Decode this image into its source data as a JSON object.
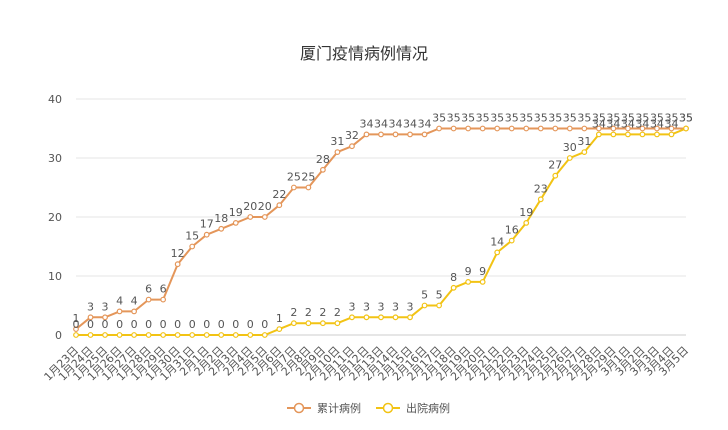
{
  "chart_data": {
    "type": "line",
    "title": "厦门疫情病例情况",
    "xlabel": "",
    "ylabel": "",
    "ylim": [
      0,
      40
    ],
    "yticks": [
      0,
      10,
      20,
      30,
      40
    ],
    "grid": true,
    "legend_position": "bottom",
    "categories": [
      "1月23日",
      "1月24日",
      "1月25日",
      "1月26日",
      "1月27日",
      "1月28日",
      "1月29日",
      "1月30日",
      "1月31日",
      "2月1日",
      "2月2日",
      "2月3日",
      "2月4日",
      "2月5日",
      "2月6日",
      "2月7日",
      "2月8日",
      "2月9日",
      "2月10日",
      "2月11日",
      "2月12日",
      "2月13日",
      "2月14日",
      "2月15日",
      "2月16日",
      "2月17日",
      "2月18日",
      "2月19日",
      "2月20日",
      "2月21日",
      "2月22日",
      "2月23日",
      "2月24日",
      "2月25日",
      "2月26日",
      "2月27日",
      "2月28日",
      "2月29日",
      "3月1日",
      "3月2日",
      "3月3日",
      "3月4日",
      "3月5日"
    ],
    "series": [
      {
        "name": "累计病例",
        "color": "#e4965a",
        "values": [
          1,
          3,
          3,
          4,
          4,
          6,
          6,
          12,
          15,
          17,
          18,
          19,
          20,
          20,
          22,
          25,
          25,
          28,
          31,
          32,
          34,
          34,
          34,
          34,
          34,
          35,
          35,
          35,
          35,
          35,
          35,
          35,
          35,
          35,
          35,
          35,
          35,
          35,
          35,
          35,
          35,
          35,
          35
        ]
      },
      {
        "name": "出院病例",
        "color": "#f2c314",
        "values": [
          0,
          0,
          0,
          0,
          0,
          0,
          0,
          0,
          0,
          0,
          0,
          0,
          0,
          0,
          1,
          2,
          2,
          2,
          2,
          3,
          3,
          3,
          3,
          3,
          5,
          5,
          8,
          9,
          9,
          14,
          16,
          19,
          23,
          27,
          30,
          31,
          34,
          34,
          34,
          34,
          34,
          34,
          35
        ]
      }
    ]
  }
}
